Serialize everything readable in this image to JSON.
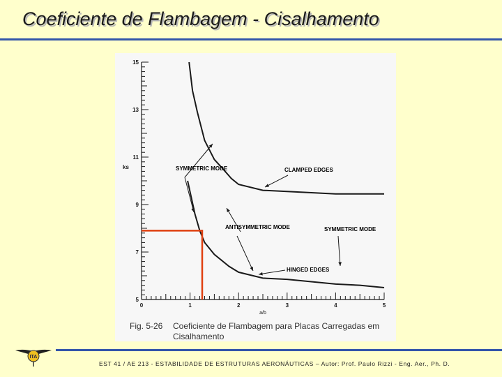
{
  "header": {
    "title": "Coeficiente de Flambagem - Cisalhamento"
  },
  "caption": {
    "label": "Fig. 5-26",
    "text": "Coeficiente de Flambagem para Placas Carregadas em Cisalhamento"
  },
  "footer": {
    "text": "EST 41 / AE 213 -  ESTABILIDADE DE ESTRUTURAS AERONÁUTICAS  –  Autor: Prof. Paulo Rizzi - Eng. Aer., Ph. D."
  },
  "logo": {
    "icon": "ita-wings-logo",
    "text": "ITA"
  },
  "colors": {
    "background": "#ffffcc",
    "rule": "#3355aa",
    "highlight": "#e04010",
    "curve": "#1a1a1a"
  },
  "chart_data": {
    "type": "line",
    "xlabel": "a/b",
    "ylabel": "ks",
    "xlim": [
      0,
      5
    ],
    "ylim": [
      5,
      15
    ],
    "x_ticks": [
      "0",
      "1",
      "2",
      "3",
      "4",
      "5"
    ],
    "y_ticks": [
      "5",
      "7",
      "9",
      "11",
      "13",
      "15"
    ],
    "series": [
      {
        "x": [
          0.98,
          1.05,
          1.15,
          1.3,
          1.5,
          1.7,
          1.85,
          2.0,
          2.5,
          3.0,
          3.5,
          4.0,
          4.5,
          5.0
        ],
        "y": [
          15.0,
          13.8,
          12.9,
          11.7,
          10.9,
          10.45,
          10.1,
          9.85,
          9.6,
          9.55,
          9.5,
          9.45,
          9.45,
          9.45
        ]
      },
      {
        "x": [
          0.95,
          1.1,
          1.2,
          1.3,
          1.5,
          1.8,
          2.0,
          2.5,
          3.0,
          3.5,
          4.0,
          4.5,
          5.0
        ],
        "y": [
          10.0,
          8.6,
          7.9,
          7.4,
          6.9,
          6.4,
          6.15,
          5.9,
          5.85,
          5.75,
          5.65,
          5.6,
          5.5
        ]
      }
    ],
    "annotations": [
      "SYMMETRIC MODE",
      "CLAMPED EDGES",
      "ANTISYMMETRIC MODE",
      "SYMMETRIC MODE",
      "HINGED EDGES"
    ],
    "highlight": {
      "x": 1.25,
      "y": 7.9
    },
    "grid": false
  }
}
